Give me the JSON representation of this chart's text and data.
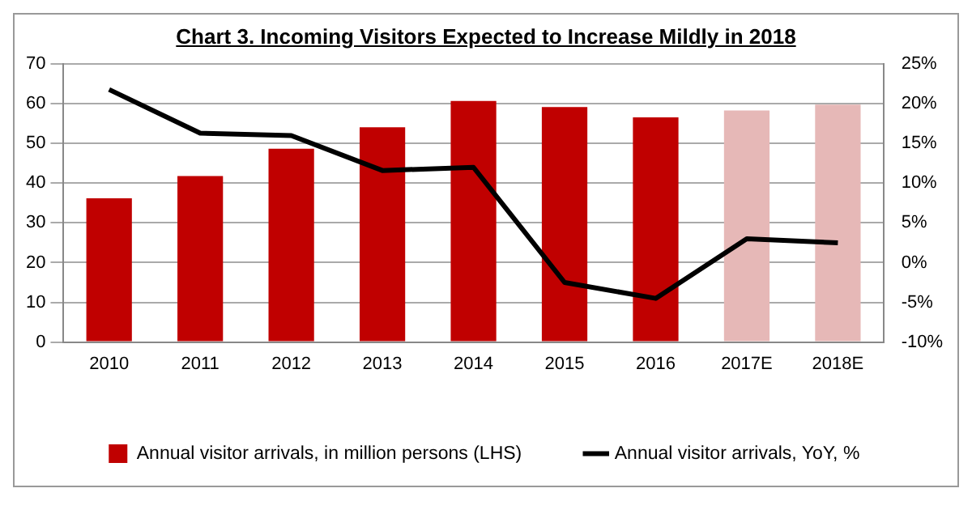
{
  "chart_data": {
    "type": "bar",
    "title": "Chart 3. Incoming Visitors Expected to Increase Mildly in 2018",
    "categories": [
      "2010",
      "2011",
      "2012",
      "2013",
      "2014",
      "2015",
      "2016",
      "2017E",
      "2018E"
    ],
    "series": [
      {
        "name": "Annual visitor arrivals, in million persons (LHS)",
        "color": "#c00000",
        "colors": [
          "#c00000",
          "#c00000",
          "#c00000",
          "#c00000",
          "#c00000",
          "#c00000",
          "#c00000",
          "#e6b8b7",
          "#e6b8b7"
        ],
        "values": [
          36.2,
          41.8,
          48.7,
          54.1,
          60.7,
          59.2,
          56.6,
          58.3,
          59.8
        ]
      },
      {
        "name": "Annual visitor arrivals, YoY, %",
        "type": "line",
        "axis": "y2",
        "color": "#000000",
        "marker": "none",
        "values": [
          21.8,
          16.3,
          16.0,
          11.6,
          12.0,
          -2.5,
          -4.5,
          3.0,
          2.5
        ]
      }
    ],
    "ylim": [
      0,
      70
    ],
    "yticks": [
      0,
      10,
      20,
      30,
      40,
      50,
      60,
      70
    ],
    "y2lim": [
      -10,
      25
    ],
    "y2ticks": [
      {
        "value": -10,
        "label": "-10%"
      },
      {
        "value": -5,
        "label": "-5%"
      },
      {
        "value": 0,
        "label": "0%"
      },
      {
        "value": 5,
        "label": "5%"
      },
      {
        "value": 10,
        "label": "10%"
      },
      {
        "value": 15,
        "label": "15%"
      },
      {
        "value": 20,
        "label": "20%"
      },
      {
        "value": 25,
        "label": "25%"
      }
    ],
    "grid": "y",
    "legend": "bottom"
  }
}
